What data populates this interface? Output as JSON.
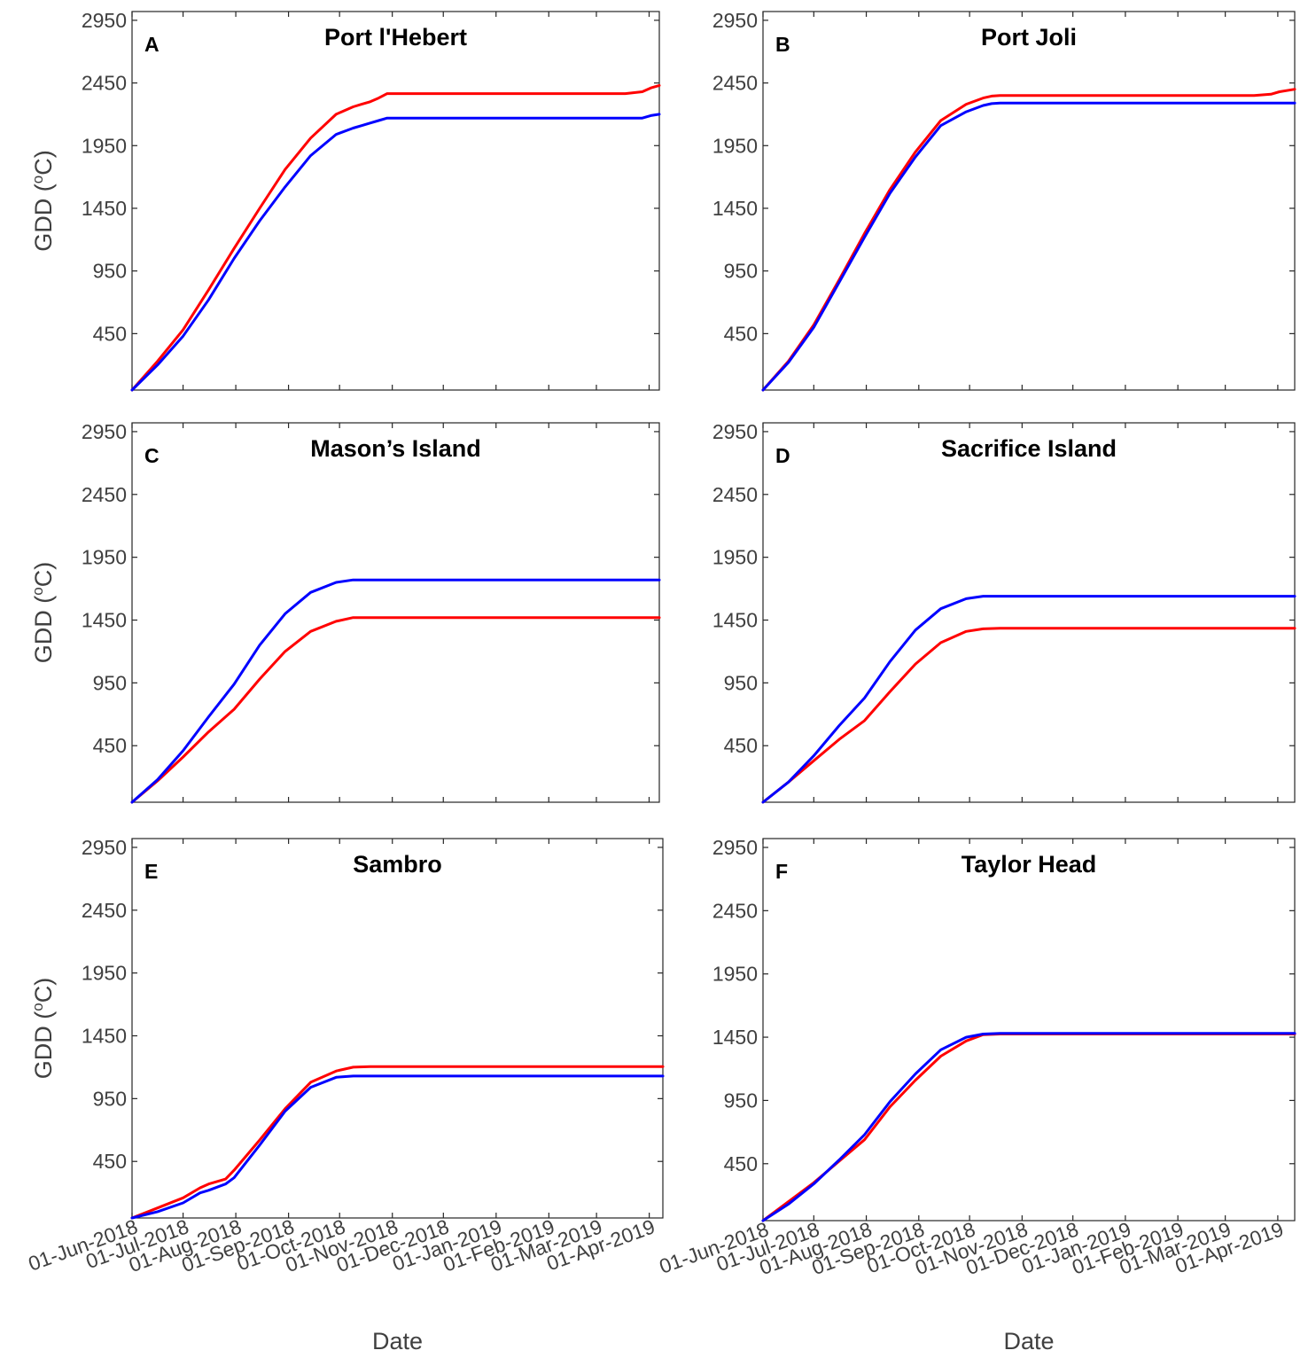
{
  "figure": {
    "ylabel_prefix": "GDD (",
    "ylabel_sup": "o",
    "ylabel_suffix": "C)",
    "xlabel": "Date"
  },
  "colors": {
    "series_red": "#ff0000",
    "series_blue": "#0000ff",
    "axis": "#262626",
    "tick_text": "#404040"
  },
  "chart_data": [
    {
      "type": "line",
      "letter": "A",
      "title": "Port l'Hebert",
      "ylabel": "GDD (oC)",
      "xlabel": "",
      "yticks": [
        450,
        950,
        1450,
        1950,
        2450,
        2950
      ],
      "ylim": [
        0,
        3020
      ],
      "xticks": [
        "01-Jun-2018",
        "01-Jul-2018",
        "01-Aug-2018",
        "01-Sep-2018",
        "01-Oct-2018",
        "01-Nov-2018",
        "01-Dec-2018",
        "01-Jan-2019",
        "01-Feb-2019",
        "01-Mar-2019",
        "01-Apr-2019"
      ],
      "show_xtick_labels": false,
      "xlim_days": [
        0,
        310
      ],
      "series": [
        {
          "name": "red",
          "x": [
            0,
            15,
            30,
            45,
            60,
            75,
            90,
            105,
            120,
            130,
            135,
            140,
            145,
            150,
            155,
            160,
            170,
            180,
            190,
            200,
            210,
            220,
            230,
            240,
            250,
            260,
            270,
            280,
            290,
            300,
            305,
            310
          ],
          "y": [
            0,
            230,
            480,
            800,
            1130,
            1450,
            1760,
            2010,
            2200,
            2260,
            2280,
            2300,
            2330,
            2365,
            2365,
            2365,
            2365,
            2365,
            2365,
            2365,
            2365,
            2365,
            2365,
            2365,
            2365,
            2365,
            2365,
            2365,
            2365,
            2380,
            2410,
            2430
          ]
        },
        {
          "name": "blue",
          "x": [
            0,
            15,
            30,
            45,
            60,
            75,
            90,
            105,
            120,
            130,
            135,
            140,
            145,
            150,
            155,
            160,
            170,
            180,
            190,
            200,
            210,
            220,
            230,
            240,
            250,
            260,
            270,
            280,
            290,
            300,
            305,
            310
          ],
          "y": [
            0,
            200,
            430,
            720,
            1050,
            1350,
            1620,
            1870,
            2040,
            2090,
            2110,
            2130,
            2150,
            2170,
            2170,
            2170,
            2170,
            2170,
            2170,
            2170,
            2170,
            2170,
            2170,
            2170,
            2170,
            2170,
            2170,
            2170,
            2170,
            2170,
            2190,
            2200
          ]
        }
      ]
    },
    {
      "type": "line",
      "letter": "B",
      "title": "Port Joli",
      "ylabel": "GDD (oC)",
      "xlabel": "",
      "yticks": [
        450,
        950,
        1450,
        1950,
        2450,
        2950
      ],
      "ylim": [
        0,
        3020
      ],
      "xticks": [
        "01-Jun-2018",
        "01-Jul-2018",
        "01-Aug-2018",
        "01-Sep-2018",
        "01-Oct-2018",
        "01-Nov-2018",
        "01-Dec-2018",
        "01-Jan-2019",
        "01-Feb-2019",
        "01-Mar-2019",
        "01-Apr-2019"
      ],
      "show_xtick_labels": false,
      "xlim_days": [
        0,
        314
      ],
      "series": [
        {
          "name": "red",
          "x": [
            0,
            15,
            30,
            45,
            60,
            75,
            90,
            105,
            120,
            130,
            135,
            140,
            145,
            150,
            155,
            160,
            170,
            180,
            190,
            200,
            220,
            240,
            260,
            280,
            290,
            300,
            305,
            314
          ],
          "y": [
            0,
            230,
            520,
            880,
            1250,
            1600,
            1900,
            2150,
            2280,
            2330,
            2345,
            2350,
            2350,
            2350,
            2350,
            2350,
            2350,
            2350,
            2350,
            2350,
            2350,
            2350,
            2350,
            2350,
            2350,
            2360,
            2380,
            2400
          ]
        },
        {
          "name": "blue",
          "x": [
            0,
            15,
            30,
            45,
            60,
            75,
            90,
            105,
            120,
            130,
            135,
            140,
            145,
            150,
            155,
            160,
            170,
            180,
            190,
            200,
            220,
            240,
            260,
            280,
            290,
            300,
            305,
            314
          ],
          "y": [
            0,
            220,
            500,
            860,
            1220,
            1570,
            1860,
            2110,
            2220,
            2270,
            2285,
            2290,
            2290,
            2290,
            2290,
            2290,
            2290,
            2290,
            2290,
            2290,
            2290,
            2290,
            2290,
            2290,
            2290,
            2290,
            2290,
            2290
          ]
        }
      ]
    },
    {
      "type": "line",
      "letter": "C",
      "title": "Mason’s Island",
      "ylabel": "GDD (oC)",
      "xlabel": "",
      "yticks": [
        450,
        950,
        1450,
        1950,
        2450,
        2950
      ],
      "ylim": [
        0,
        3020
      ],
      "xticks": [
        "01-Jun-2018",
        "01-Jul-2018",
        "01-Aug-2018",
        "01-Sep-2018",
        "01-Oct-2018",
        "01-Nov-2018",
        "01-Dec-2018",
        "01-Jan-2019",
        "01-Feb-2019",
        "01-Mar-2019",
        "01-Apr-2019"
      ],
      "show_xtick_labels": false,
      "xlim_days": [
        0,
        310
      ],
      "series": [
        {
          "name": "red",
          "x": [
            0,
            15,
            30,
            45,
            60,
            75,
            90,
            105,
            120,
            130,
            140,
            145,
            150,
            155,
            160,
            180,
            200,
            220,
            240,
            260,
            280,
            300,
            310
          ],
          "y": [
            0,
            170,
            360,
            560,
            740,
            980,
            1200,
            1360,
            1440,
            1470,
            1470,
            1470,
            1470,
            1470,
            1470,
            1470,
            1470,
            1470,
            1470,
            1470,
            1470,
            1470,
            1470
          ]
        },
        {
          "name": "blue",
          "x": [
            0,
            15,
            30,
            45,
            60,
            75,
            90,
            105,
            120,
            130,
            140,
            145,
            150,
            155,
            160,
            180,
            200,
            220,
            240,
            260,
            280,
            300,
            310
          ],
          "y": [
            0,
            180,
            410,
            680,
            940,
            1250,
            1500,
            1670,
            1750,
            1770,
            1770,
            1770,
            1770,
            1770,
            1770,
            1770,
            1770,
            1770,
            1770,
            1770,
            1770,
            1770,
            1770
          ]
        }
      ]
    },
    {
      "type": "line",
      "letter": "D",
      "title": "Sacrifice Island",
      "ylabel": "GDD (oC)",
      "xlabel": "",
      "yticks": [
        450,
        950,
        1450,
        1950,
        2450,
        2950
      ],
      "ylim": [
        0,
        3020
      ],
      "xticks": [
        "01-Jun-2018",
        "01-Jul-2018",
        "01-Aug-2018",
        "01-Sep-2018",
        "01-Oct-2018",
        "01-Nov-2018",
        "01-Dec-2018",
        "01-Jan-2019",
        "01-Feb-2019",
        "01-Mar-2019",
        "01-Apr-2019"
      ],
      "show_xtick_labels": false,
      "xlim_days": [
        0,
        314
      ],
      "series": [
        {
          "name": "red",
          "x": [
            0,
            15,
            30,
            45,
            60,
            75,
            90,
            105,
            120,
            130,
            140,
            150,
            160,
            180,
            200,
            220,
            240,
            260,
            280,
            300,
            314
          ],
          "y": [
            0,
            160,
            330,
            500,
            650,
            880,
            1100,
            1270,
            1360,
            1380,
            1385,
            1385,
            1385,
            1385,
            1385,
            1385,
            1385,
            1385,
            1385,
            1385,
            1385
          ]
        },
        {
          "name": "blue",
          "x": [
            0,
            15,
            30,
            45,
            60,
            75,
            90,
            105,
            120,
            130,
            140,
            150,
            160,
            180,
            200,
            220,
            240,
            260,
            280,
            300,
            314
          ],
          "y": [
            0,
            160,
            370,
            610,
            830,
            1120,
            1370,
            1540,
            1620,
            1640,
            1640,
            1640,
            1640,
            1640,
            1640,
            1640,
            1640,
            1640,
            1640,
            1640,
            1640
          ]
        }
      ]
    },
    {
      "type": "line",
      "letter": "E",
      "title": "Sambro",
      "ylabel": "GDD (oC)",
      "xlabel": "Date",
      "yticks": [
        450,
        950,
        1450,
        1950,
        2450,
        2950
      ],
      "ylim": [
        0,
        3020
      ],
      "xticks": [
        "01-Jun-2018",
        "01-Jul-2018",
        "01-Aug-2018",
        "01-Sep-2018",
        "01-Oct-2018",
        "01-Nov-2018",
        "01-Dec-2018",
        "01-Jan-2019",
        "01-Feb-2019",
        "01-Mar-2019",
        "01-Apr-2019"
      ],
      "show_xtick_labels": true,
      "xlim_days": [
        0,
        312
      ],
      "series": [
        {
          "name": "red",
          "x": [
            0,
            15,
            30,
            40,
            45,
            55,
            60,
            75,
            90,
            105,
            120,
            130,
            140,
            150,
            160,
            180,
            200,
            220,
            240,
            260,
            280,
            300,
            312
          ],
          "y": [
            0,
            80,
            160,
            240,
            270,
            310,
            380,
            620,
            870,
            1080,
            1170,
            1200,
            1205,
            1205,
            1205,
            1205,
            1205,
            1205,
            1205,
            1205,
            1205,
            1205,
            1205
          ]
        },
        {
          "name": "blue",
          "x": [
            0,
            15,
            30,
            40,
            45,
            55,
            60,
            75,
            90,
            105,
            120,
            130,
            140,
            150,
            160,
            180,
            200,
            220,
            240,
            260,
            280,
            300,
            312
          ],
          "y": [
            0,
            50,
            120,
            200,
            220,
            270,
            320,
            580,
            850,
            1040,
            1120,
            1130,
            1130,
            1130,
            1130,
            1130,
            1130,
            1130,
            1130,
            1130,
            1130,
            1130,
            1130
          ]
        }
      ]
    },
    {
      "type": "line",
      "letter": "F",
      "title": "Taylor Head",
      "ylabel": "GDD (oC)",
      "xlabel": "Date",
      "yticks": [
        450,
        950,
        1450,
        1950,
        2450,
        2950
      ],
      "ylim": [
        0,
        3020
      ],
      "xticks": [
        "01-Jun-2018",
        "01-Jul-2018",
        "01-Aug-2018",
        "01-Sep-2018",
        "01-Oct-2018",
        "01-Nov-2018",
        "01-Dec-2018",
        "01-Jan-2019",
        "01-Feb-2019",
        "01-Mar-2019",
        "01-Apr-2019"
      ],
      "show_xtick_labels": true,
      "xlim_days": [
        0,
        314
      ],
      "series": [
        {
          "name": "red",
          "x": [
            0,
            15,
            30,
            45,
            60,
            75,
            90,
            105,
            120,
            130,
            140,
            150,
            160,
            180,
            200,
            220,
            240,
            260,
            280,
            300,
            314
          ],
          "y": [
            0,
            150,
            300,
            470,
            640,
            900,
            1110,
            1300,
            1420,
            1470,
            1475,
            1475,
            1475,
            1475,
            1475,
            1475,
            1475,
            1475,
            1475,
            1475,
            1475
          ]
        },
        {
          "name": "blue",
          "x": [
            0,
            15,
            30,
            45,
            60,
            75,
            90,
            105,
            120,
            130,
            140,
            150,
            160,
            180,
            200,
            220,
            240,
            260,
            280,
            300,
            314
          ],
          "y": [
            0,
            130,
            290,
            480,
            680,
            940,
            1160,
            1350,
            1450,
            1475,
            1480,
            1480,
            1480,
            1480,
            1480,
            1480,
            1480,
            1480,
            1480,
            1480,
            1480
          ]
        }
      ]
    }
  ]
}
